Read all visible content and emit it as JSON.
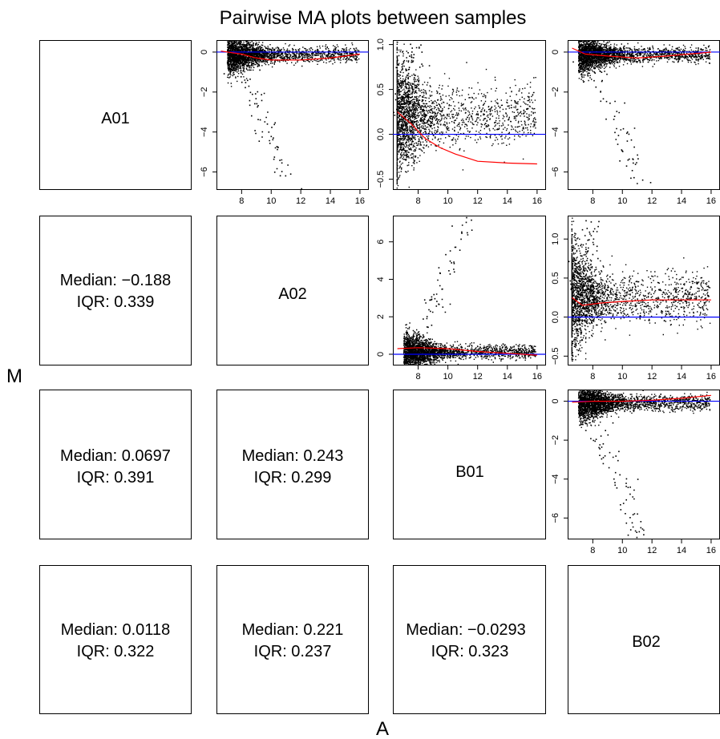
{
  "title": "Pairwise MA plots between samples",
  "xlabel": "A",
  "ylabel": "M",
  "samples": [
    "A01",
    "A02",
    "B01",
    "B02"
  ],
  "colors": {
    "points": "#000000",
    "loess": "#ff0000",
    "zero_line": "#0000ff",
    "frame": "#000000"
  },
  "stats": [
    {
      "row": 1,
      "col": 0,
      "median_label": "Median: −0.188",
      "iqr_label": "IQR: 0.339",
      "median": -0.188,
      "iqr": 0.339
    },
    {
      "row": 2,
      "col": 0,
      "median_label": "Median: 0.0697",
      "iqr_label": "IQR: 0.391",
      "median": 0.0697,
      "iqr": 0.391
    },
    {
      "row": 2,
      "col": 1,
      "median_label": "Median: 0.243",
      "iqr_label": "IQR: 0.299",
      "median": 0.243,
      "iqr": 0.299
    },
    {
      "row": 3,
      "col": 0,
      "median_label": "Median: 0.0118",
      "iqr_label": "IQR: 0.322",
      "median": 0.0118,
      "iqr": 0.322
    },
    {
      "row": 3,
      "col": 1,
      "median_label": "Median: 0.221",
      "iqr_label": "IQR: 0.237",
      "median": 0.221,
      "iqr": 0.237
    },
    {
      "row": 3,
      "col": 2,
      "median_label": "Median: −0.0293",
      "iqr_label": "IQR: 0.323",
      "median": -0.0293,
      "iqr": 0.323
    }
  ],
  "chart_data": [
    {
      "type": "scatter",
      "row": 0,
      "col": 1,
      "pair": [
        "A01",
        "A02"
      ],
      "xlim": [
        6.3,
        16.6
      ],
      "ylim": [
        -6.9,
        0.6
      ],
      "xticks": [
        8,
        10,
        12,
        14,
        16
      ],
      "yticks": [
        0,
        -2,
        -4,
        -6
      ],
      "cloud": {
        "a_center": 8.5,
        "m_center": -0.1,
        "m_spread": 0.25,
        "tail_to": -6.6,
        "tail_a": 10.5
      },
      "loess": [
        [
          6.6,
          0.05
        ],
        [
          8,
          -0.1
        ],
        [
          9,
          -0.3
        ],
        [
          10,
          -0.4
        ],
        [
          12,
          -0.4
        ],
        [
          14,
          -0.3
        ],
        [
          16,
          -0.1
        ]
      ]
    },
    {
      "type": "scatter",
      "row": 0,
      "col": 2,
      "pair": [
        "A01",
        "B01"
      ],
      "xlim": [
        6.3,
        16.6
      ],
      "ylim": [
        -0.62,
        1.05
      ],
      "xticks": [
        8,
        10,
        12,
        14,
        16
      ],
      "yticks": [
        1.0,
        0.5,
        0.0,
        -0.5
      ],
      "cloud": {
        "a_center": 7.5,
        "m_center": 0.2,
        "m_spread": 0.2,
        "tail_to": 1.0,
        "tail_a": 7.0
      },
      "loess": [
        [
          6.6,
          0.25
        ],
        [
          7.5,
          0.12
        ],
        [
          8.5,
          -0.05
        ],
        [
          9.5,
          -0.15
        ],
        [
          10.5,
          -0.22
        ],
        [
          12,
          -0.3
        ],
        [
          14,
          -0.32
        ],
        [
          16,
          -0.33
        ]
      ]
    },
    {
      "type": "scatter",
      "row": 0,
      "col": 3,
      "pair": [
        "A01",
        "B02"
      ],
      "xlim": [
        6.3,
        16.6
      ],
      "ylim": [
        -6.9,
        0.6
      ],
      "xticks": [
        8,
        10,
        12,
        14,
        16
      ],
      "yticks": [
        0,
        -2,
        -4,
        -6
      ],
      "cloud": {
        "a_center": 8.5,
        "m_center": -0.1,
        "m_spread": 0.25,
        "tail_to": -6.6,
        "tail_a": 10.5
      },
      "loess": [
        [
          6.6,
          0.2
        ],
        [
          7.5,
          -0.1
        ],
        [
          9,
          -0.2
        ],
        [
          11,
          -0.3
        ],
        [
          13,
          -0.2
        ],
        [
          16,
          0.0
        ]
      ]
    },
    {
      "type": "scatter",
      "row": 1,
      "col": 2,
      "pair": [
        "A02",
        "B01"
      ],
      "xlim": [
        6.3,
        16.6
      ],
      "ylim": [
        -0.6,
        7.4
      ],
      "xticks": [
        8,
        10,
        12,
        14,
        16
      ],
      "yticks": [
        0,
        2,
        4,
        6
      ],
      "cloud": {
        "a_center": 8.5,
        "m_center": 0.15,
        "m_spread": 0.25,
        "tail_to": 7.1,
        "tail_a": 10.5
      },
      "loess": [
        [
          6.6,
          0.3
        ],
        [
          8,
          0.35
        ],
        [
          10,
          0.3
        ],
        [
          12,
          0.15
        ],
        [
          14,
          0.05
        ],
        [
          16,
          -0.05
        ]
      ]
    },
    {
      "type": "scatter",
      "row": 1,
      "col": 3,
      "pair": [
        "A02",
        "B02"
      ],
      "xlim": [
        6.3,
        16.6
      ],
      "ylim": [
        -0.62,
        1.3
      ],
      "xticks": [
        8,
        10,
        12,
        14,
        16
      ],
      "yticks": [
        1.0,
        0.5,
        0.0,
        -0.5
      ],
      "cloud": {
        "a_center": 7.5,
        "m_center": 0.25,
        "m_spread": 0.2,
        "tail_to": 1.2,
        "tail_a": 7.3
      },
      "loess": [
        [
          6.6,
          0.25
        ],
        [
          7.3,
          0.15
        ],
        [
          8.5,
          0.18
        ],
        [
          10,
          0.2
        ],
        [
          12,
          0.22
        ],
        [
          14,
          0.22
        ],
        [
          16,
          0.22
        ]
      ]
    },
    {
      "type": "scatter",
      "row": 2,
      "col": 3,
      "pair": [
        "B01",
        "B02"
      ],
      "xlim": [
        6.3,
        16.6
      ],
      "ylim": [
        -7.1,
        0.6
      ],
      "xticks": [
        8,
        10,
        12,
        14,
        16
      ],
      "yticks": [
        0,
        -2,
        -4,
        -6
      ],
      "cloud": {
        "a_center": 8.5,
        "m_center": -0.05,
        "m_spread": 0.25,
        "tail_to": -6.9,
        "tail_a": 10.5
      },
      "loess": [
        [
          6.6,
          -0.05
        ],
        [
          8,
          0.0
        ],
        [
          10,
          0.0
        ],
        [
          12,
          0.05
        ],
        [
          14,
          0.15
        ],
        [
          16,
          0.3
        ]
      ]
    }
  ]
}
